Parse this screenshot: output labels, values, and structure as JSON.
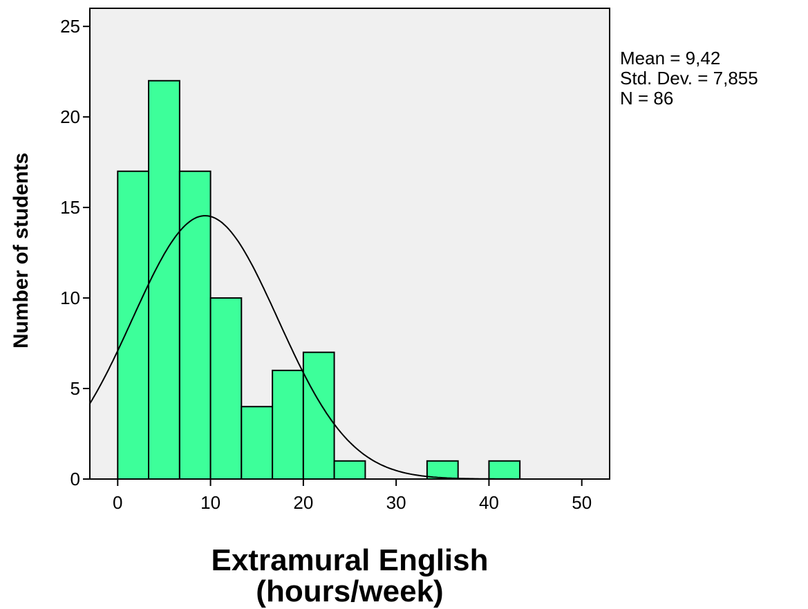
{
  "chart_data": {
    "type": "bar",
    "subtype": "histogram",
    "xlabel_lines": [
      "Extramural English",
      "(hours/week)"
    ],
    "ylabel": "Number of students",
    "xlim": [
      -3,
      53
    ],
    "ylim": [
      0,
      26
    ],
    "x_ticks": [
      0,
      10,
      20,
      30,
      40,
      50
    ],
    "y_ticks": [
      0,
      5,
      10,
      15,
      20,
      25
    ],
    "bin_width": 3.33,
    "bins": [
      {
        "start": 0.0,
        "end": 3.33,
        "count": 17
      },
      {
        "start": 3.33,
        "end": 6.67,
        "count": 22
      },
      {
        "start": 6.67,
        "end": 10.0,
        "count": 17
      },
      {
        "start": 10.0,
        "end": 13.33,
        "count": 10
      },
      {
        "start": 13.33,
        "end": 16.67,
        "count": 4
      },
      {
        "start": 16.67,
        "end": 20.0,
        "count": 6
      },
      {
        "start": 20.0,
        "end": 23.33,
        "count": 7
      },
      {
        "start": 23.33,
        "end": 26.67,
        "count": 1
      },
      {
        "start": 26.67,
        "end": 30.0,
        "count": 0
      },
      {
        "start": 30.0,
        "end": 33.33,
        "count": 0
      },
      {
        "start": 33.33,
        "end": 36.67,
        "count": 1
      },
      {
        "start": 36.67,
        "end": 40.0,
        "count": 0
      },
      {
        "start": 40.0,
        "end": 43.33,
        "count": 1
      }
    ],
    "normal_curve": {
      "mean": 9.42,
      "sd": 7.855,
      "n": 86
    },
    "grid": false,
    "colors": {
      "bar_fill": "#3dff9a",
      "plot_bg": "#f0f0f0",
      "stroke": "#000000"
    }
  },
  "stats": {
    "mean_text": "Mean = 9,42",
    "sd_text": "Std. Dev. = 7,855",
    "n_text": "N = 86"
  }
}
